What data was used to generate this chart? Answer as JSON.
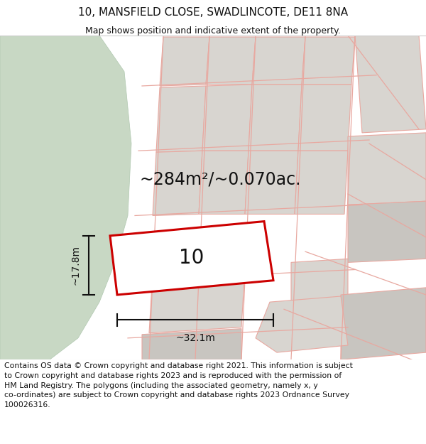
{
  "title_line1": "10, MANSFIELD CLOSE, SWADLINCOTE, DE11 8NA",
  "title_line2": "Map shows position and indicative extent of the property.",
  "footer_text": "Contains OS data © Crown copyright and database right 2021. This information is subject to Crown copyright and database rights 2023 and is reproduced with the permission of\nHM Land Registry. The polygons (including the associated geometry, namely x, y\nco-ordinates) are subject to Crown copyright and database rights 2023 Ordnance Survey\n100026316.",
  "area_label": "~284m²/~0.070ac.",
  "number_label": "10",
  "dim_width": "~32.1m",
  "dim_height": "~17.8m",
  "map_bg": "#f8f6f3",
  "green_color": "#c8d8c4",
  "plot_fill": "#ffffff",
  "plot_edge": "#cc0000",
  "bg_block_fill": "#d8d5d0",
  "bg_block_edge": "#e8a8a0",
  "dim_color": "#111111",
  "title_fs": 11,
  "subtitle_fs": 9,
  "footer_fs": 7.8,
  "area_fs": 17,
  "number_fs": 20,
  "dim_fs": 10
}
